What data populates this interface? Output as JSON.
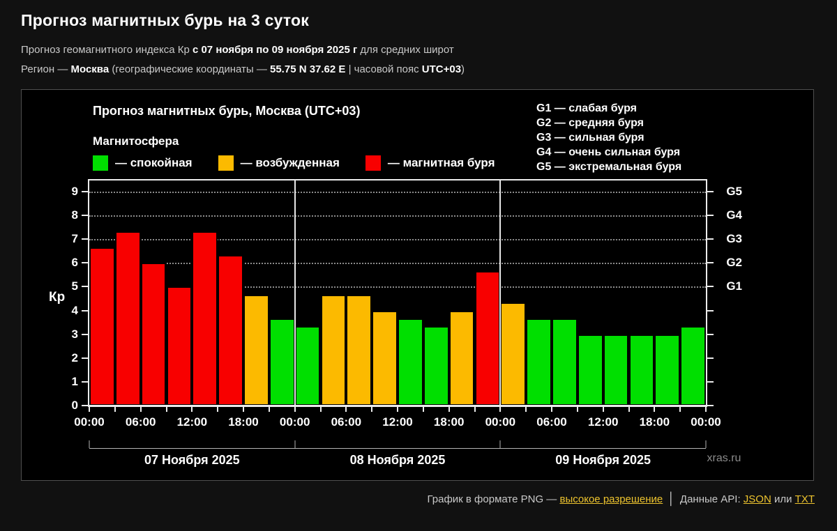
{
  "page": {
    "title": "Прогноз магнитных бурь на 3 суток",
    "subtitle": {
      "pre": "Прогноз геомагнитного индекса Кр ",
      "bold_range": "с 07 ноября по 09 ноября 2025 г",
      "post": " для средних широт"
    },
    "region_line": {
      "label": "Регион — ",
      "region": "Москва",
      "coords_pre": " (географические координаты — ",
      "coords": "55.75 N 37.62 E",
      "tz_pre": " | часовой пояс ",
      "tz": "UTC+03",
      "close": ")"
    }
  },
  "panel": {
    "chart_title": "Прогноз магнитных бурь, Москва (UTC+03)",
    "legend_title": "Магнитосфера",
    "legend": [
      {
        "status": "quiet",
        "color": "#00DF00",
        "label": "— спокойная"
      },
      {
        "status": "active",
        "color": "#FCBA00",
        "label": "— возбужденная"
      },
      {
        "status": "storm",
        "color": "#F80000",
        "label": "— магнитная буря"
      }
    ],
    "g_legend": [
      "G1 — слабая буря",
      "G2 — средняя буря",
      "G3 — сильная буря",
      "G4 — очень сильная буря",
      "G5 — экстремальная буря"
    ],
    "watermark": "xras.ru"
  },
  "chart_data": {
    "type": "bar",
    "title": "Прогноз магнитных бурь, Москва (UTC+03)",
    "ylabel": "Кр",
    "ylim": [
      0,
      9.47
    ],
    "yticks": [
      0,
      1,
      2,
      3,
      4,
      5,
      6,
      7,
      8,
      9
    ],
    "g_levels": [
      {
        "kp": 5,
        "label": "G1"
      },
      {
        "kp": 6,
        "label": "G2"
      },
      {
        "kp": 7,
        "label": "G3"
      },
      {
        "kp": 8,
        "label": "G4"
      },
      {
        "kp": 9,
        "label": "G5"
      }
    ],
    "interval_hours": 3,
    "x_tick_labels": [
      "00:00",
      "06:00",
      "12:00",
      "18:00",
      "00:00",
      "06:00",
      "12:00",
      "18:00",
      "00:00",
      "06:00",
      "12:00",
      "18:00",
      "00:00"
    ],
    "days": [
      {
        "label": "07 Ноября 2025",
        "values": [
          6.67,
          7.33,
          6.0,
          5.0,
          7.33,
          6.33,
          4.67,
          3.67
        ]
      },
      {
        "label": "08 Ноября 2025",
        "values": [
          3.33,
          4.67,
          4.67,
          4.0,
          3.67,
          3.33,
          4.0,
          5.67
        ]
      },
      {
        "label": "09 Ноября 2025",
        "values": [
          4.33,
          3.67,
          3.67,
          3.0,
          3.0,
          3.0,
          3.0,
          3.33
        ]
      }
    ],
    "thresholds": {
      "active_min": 4,
      "storm_min": 5
    },
    "colors": {
      "quiet": "#00DF00",
      "active": "#FCBA00",
      "storm": "#F80000"
    },
    "legend_position": "top-left",
    "grid": "dotted horizontal lines at G levels"
  },
  "footer": {
    "png_text": "График в формате PNG — ",
    "png_link": "высокое разрешение",
    "separator": "│",
    "api_text": "Данные API: ",
    "json_link": "JSON",
    "or_text": " или ",
    "txt_link": "TXT"
  }
}
